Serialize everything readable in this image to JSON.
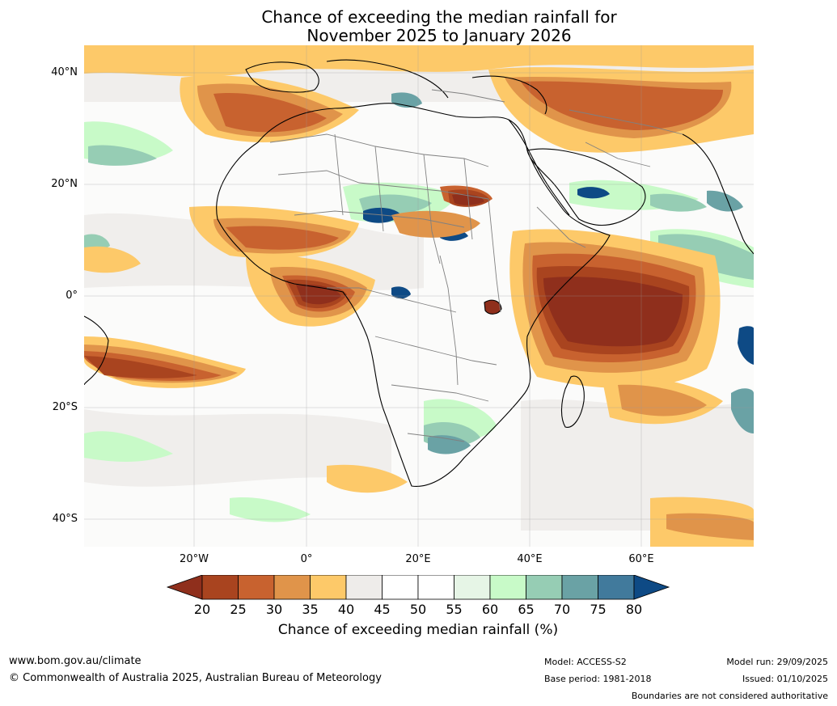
{
  "header": {
    "title_line1": "Chance of exceeding the median rainfall for",
    "title_line2": "November 2025 to January 2026"
  },
  "map": {
    "lat_labels": [
      "40°N",
      "20°N",
      "0°",
      "20°S",
      "40°S"
    ],
    "lon_labels": [
      "20°W",
      "0°",
      "20°E",
      "40°E",
      "60°E"
    ],
    "ocean_color": "#fbfbfa",
    "land_outline_color": "#000000",
    "border_color": "#808080"
  },
  "colorbar": {
    "ticks": [
      "20",
      "25",
      "30",
      "35",
      "40",
      "45",
      "50",
      "55",
      "60",
      "65",
      "70",
      "75",
      "80"
    ],
    "colors": [
      "#8f2f1c",
      "#a9441f",
      "#c8622f",
      "#e0944a",
      "#fdc969",
      "#eeecea",
      "#ffffff",
      "#ffffff",
      "#e6f5e6",
      "#c8fac8",
      "#96cdb4",
      "#6aa2a5",
      "#417a9c",
      "#0e4a85"
    ],
    "label": "Chance of exceeding median rainfall (%)"
  },
  "footer": {
    "website": "www.bom.gov.au/climate",
    "copyright": "© Commonwealth of Australia 2025, Australian Bureau of Meteorology",
    "model": "Model: ACCESS-S2",
    "base_period": "Base period: 1981-2018",
    "model_run": "Model run: 29/09/2025",
    "issued": "Issued: 01/10/2025",
    "disclaimer": "Boundaries are not considered authoritative"
  }
}
